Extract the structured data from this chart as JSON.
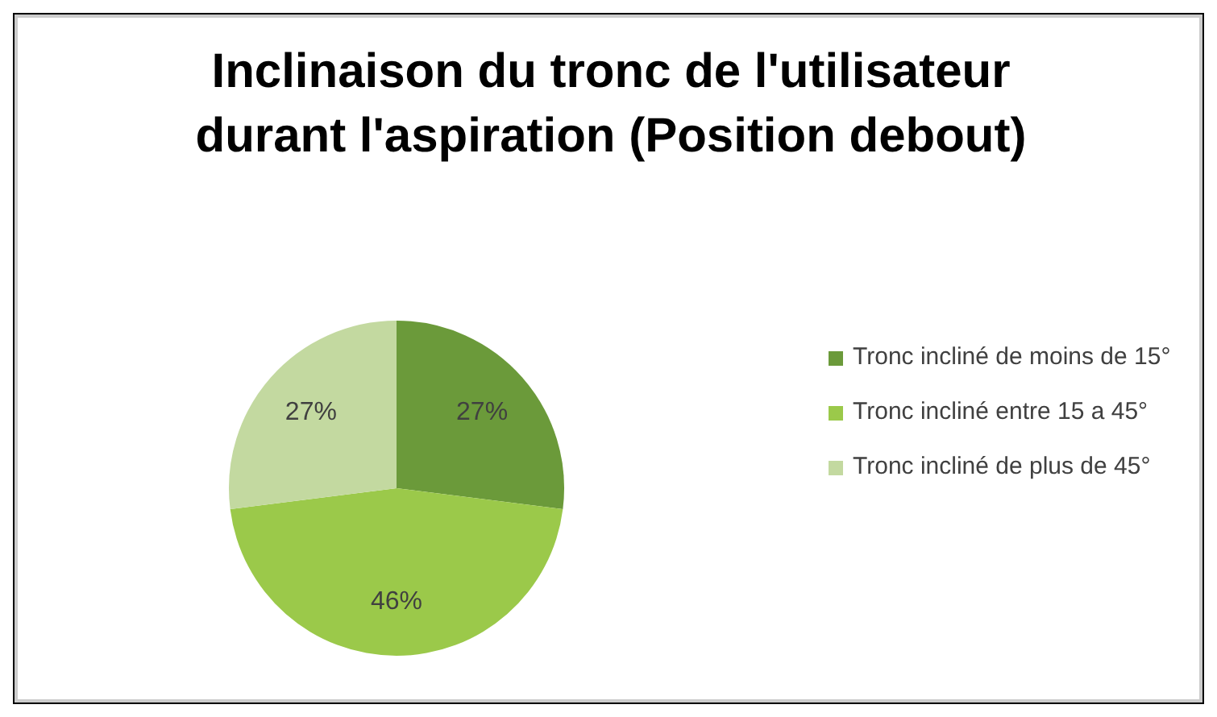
{
  "chart_data": {
    "type": "pie",
    "title": "Inclinaison du tronc de l'utilisateur durant l'aspiration (Position debout)",
    "categories": [
      "Tronc incliné de moins de 15°",
      "Tronc incliné entre 15 a 45°",
      "Tronc incliné de plus de 45°"
    ],
    "values": [
      27,
      46,
      27
    ],
    "colors": [
      "#6b9a3a",
      "#9bc94a",
      "#c3d9a0"
    ],
    "value_labels": [
      "27%",
      "46%",
      "27%"
    ],
    "legend": "right"
  }
}
